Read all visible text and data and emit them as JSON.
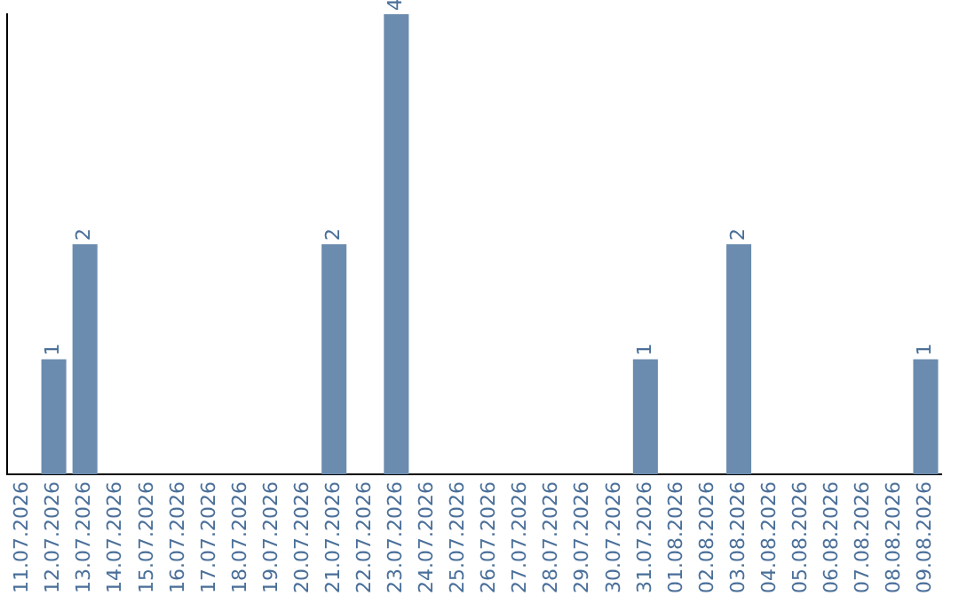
{
  "chart_data": {
    "type": "bar",
    "categories": [
      "11.07.2026",
      "12.07.2026",
      "13.07.2026",
      "14.07.2026",
      "15.07.2026",
      "16.07.2026",
      "17.07.2026",
      "18.07.2026",
      "19.07.2026",
      "20.07.2026",
      "21.07.2026",
      "22.07.2026",
      "23.07.2026",
      "24.07.2026",
      "25.07.2026",
      "26.07.2026",
      "27.07.2026",
      "28.07.2026",
      "29.07.2026",
      "30.07.2026",
      "31.07.2026",
      "01.08.2026",
      "02.08.2026",
      "03.08.2026",
      "04.08.2026",
      "05.08.2026",
      "06.08.2026",
      "07.08.2026",
      "08.08.2026",
      "09.08.2026"
    ],
    "values": [
      0,
      1,
      2,
      0,
      0,
      0,
      0,
      0,
      0,
      0,
      2,
      0,
      4,
      0,
      0,
      0,
      0,
      0,
      0,
      0,
      1,
      0,
      0,
      2,
      0,
      0,
      0,
      0,
      0,
      1
    ],
    "value_labels": [
      null,
      "1",
      "2",
      null,
      null,
      null,
      null,
      null,
      null,
      null,
      "2",
      null,
      "4",
      null,
      null,
      null,
      null,
      null,
      null,
      null,
      "1",
      null,
      null,
      "2",
      null,
      null,
      null,
      null,
      null,
      "1"
    ],
    "color": "#6b8cae",
    "ylim": [
      0,
      4
    ],
    "tick_labels": "x",
    "grid": false,
    "legend": false
  }
}
